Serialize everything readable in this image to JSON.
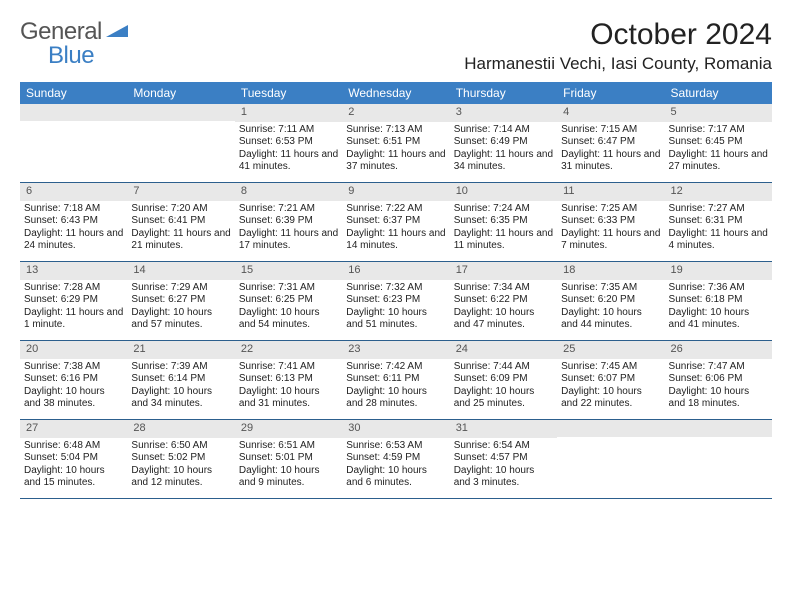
{
  "logo": {
    "text1": "General",
    "text2": "Blue"
  },
  "title": "October 2024",
  "location": "Harmanestii Vechi, Iasi County, Romania",
  "colors": {
    "header_bg": "#3b7fc4",
    "header_text": "#ffffff",
    "daynum_bg": "#e8e8e8",
    "daynum_text": "#555555",
    "body_text": "#222222",
    "row_border": "#2c5f8d",
    "logo_gray": "#555555",
    "logo_blue": "#3b7fc4",
    "page_bg": "#ffffff"
  },
  "typography": {
    "title_fontsize": 30,
    "location_fontsize": 17,
    "weekday_fontsize": 12,
    "daynum_fontsize": 11,
    "body_fontsize": 10,
    "logo_fontsize": 24
  },
  "weekdays": [
    "Sunday",
    "Monday",
    "Tuesday",
    "Wednesday",
    "Thursday",
    "Friday",
    "Saturday"
  ],
  "weeks": [
    [
      null,
      null,
      {
        "num": "1",
        "sunrise": "Sunrise: 7:11 AM",
        "sunset": "Sunset: 6:53 PM",
        "daylight": "Daylight: 11 hours and 41 minutes."
      },
      {
        "num": "2",
        "sunrise": "Sunrise: 7:13 AM",
        "sunset": "Sunset: 6:51 PM",
        "daylight": "Daylight: 11 hours and 37 minutes."
      },
      {
        "num": "3",
        "sunrise": "Sunrise: 7:14 AM",
        "sunset": "Sunset: 6:49 PM",
        "daylight": "Daylight: 11 hours and 34 minutes."
      },
      {
        "num": "4",
        "sunrise": "Sunrise: 7:15 AM",
        "sunset": "Sunset: 6:47 PM",
        "daylight": "Daylight: 11 hours and 31 minutes."
      },
      {
        "num": "5",
        "sunrise": "Sunrise: 7:17 AM",
        "sunset": "Sunset: 6:45 PM",
        "daylight": "Daylight: 11 hours and 27 minutes."
      }
    ],
    [
      {
        "num": "6",
        "sunrise": "Sunrise: 7:18 AM",
        "sunset": "Sunset: 6:43 PM",
        "daylight": "Daylight: 11 hours and 24 minutes."
      },
      {
        "num": "7",
        "sunrise": "Sunrise: 7:20 AM",
        "sunset": "Sunset: 6:41 PM",
        "daylight": "Daylight: 11 hours and 21 minutes."
      },
      {
        "num": "8",
        "sunrise": "Sunrise: 7:21 AM",
        "sunset": "Sunset: 6:39 PM",
        "daylight": "Daylight: 11 hours and 17 minutes."
      },
      {
        "num": "9",
        "sunrise": "Sunrise: 7:22 AM",
        "sunset": "Sunset: 6:37 PM",
        "daylight": "Daylight: 11 hours and 14 minutes."
      },
      {
        "num": "10",
        "sunrise": "Sunrise: 7:24 AM",
        "sunset": "Sunset: 6:35 PM",
        "daylight": "Daylight: 11 hours and 11 minutes."
      },
      {
        "num": "11",
        "sunrise": "Sunrise: 7:25 AM",
        "sunset": "Sunset: 6:33 PM",
        "daylight": "Daylight: 11 hours and 7 minutes."
      },
      {
        "num": "12",
        "sunrise": "Sunrise: 7:27 AM",
        "sunset": "Sunset: 6:31 PM",
        "daylight": "Daylight: 11 hours and 4 minutes."
      }
    ],
    [
      {
        "num": "13",
        "sunrise": "Sunrise: 7:28 AM",
        "sunset": "Sunset: 6:29 PM",
        "daylight": "Daylight: 11 hours and 1 minute."
      },
      {
        "num": "14",
        "sunrise": "Sunrise: 7:29 AM",
        "sunset": "Sunset: 6:27 PM",
        "daylight": "Daylight: 10 hours and 57 minutes."
      },
      {
        "num": "15",
        "sunrise": "Sunrise: 7:31 AM",
        "sunset": "Sunset: 6:25 PM",
        "daylight": "Daylight: 10 hours and 54 minutes."
      },
      {
        "num": "16",
        "sunrise": "Sunrise: 7:32 AM",
        "sunset": "Sunset: 6:23 PM",
        "daylight": "Daylight: 10 hours and 51 minutes."
      },
      {
        "num": "17",
        "sunrise": "Sunrise: 7:34 AM",
        "sunset": "Sunset: 6:22 PM",
        "daylight": "Daylight: 10 hours and 47 minutes."
      },
      {
        "num": "18",
        "sunrise": "Sunrise: 7:35 AM",
        "sunset": "Sunset: 6:20 PM",
        "daylight": "Daylight: 10 hours and 44 minutes."
      },
      {
        "num": "19",
        "sunrise": "Sunrise: 7:36 AM",
        "sunset": "Sunset: 6:18 PM",
        "daylight": "Daylight: 10 hours and 41 minutes."
      }
    ],
    [
      {
        "num": "20",
        "sunrise": "Sunrise: 7:38 AM",
        "sunset": "Sunset: 6:16 PM",
        "daylight": "Daylight: 10 hours and 38 minutes."
      },
      {
        "num": "21",
        "sunrise": "Sunrise: 7:39 AM",
        "sunset": "Sunset: 6:14 PM",
        "daylight": "Daylight: 10 hours and 34 minutes."
      },
      {
        "num": "22",
        "sunrise": "Sunrise: 7:41 AM",
        "sunset": "Sunset: 6:13 PM",
        "daylight": "Daylight: 10 hours and 31 minutes."
      },
      {
        "num": "23",
        "sunrise": "Sunrise: 7:42 AM",
        "sunset": "Sunset: 6:11 PM",
        "daylight": "Daylight: 10 hours and 28 minutes."
      },
      {
        "num": "24",
        "sunrise": "Sunrise: 7:44 AM",
        "sunset": "Sunset: 6:09 PM",
        "daylight": "Daylight: 10 hours and 25 minutes."
      },
      {
        "num": "25",
        "sunrise": "Sunrise: 7:45 AM",
        "sunset": "Sunset: 6:07 PM",
        "daylight": "Daylight: 10 hours and 22 minutes."
      },
      {
        "num": "26",
        "sunrise": "Sunrise: 7:47 AM",
        "sunset": "Sunset: 6:06 PM",
        "daylight": "Daylight: 10 hours and 18 minutes."
      }
    ],
    [
      {
        "num": "27",
        "sunrise": "Sunrise: 6:48 AM",
        "sunset": "Sunset: 5:04 PM",
        "daylight": "Daylight: 10 hours and 15 minutes."
      },
      {
        "num": "28",
        "sunrise": "Sunrise: 6:50 AM",
        "sunset": "Sunset: 5:02 PM",
        "daylight": "Daylight: 10 hours and 12 minutes."
      },
      {
        "num": "29",
        "sunrise": "Sunrise: 6:51 AM",
        "sunset": "Sunset: 5:01 PM",
        "daylight": "Daylight: 10 hours and 9 minutes."
      },
      {
        "num": "30",
        "sunrise": "Sunrise: 6:53 AM",
        "sunset": "Sunset: 4:59 PM",
        "daylight": "Daylight: 10 hours and 6 minutes."
      },
      {
        "num": "31",
        "sunrise": "Sunrise: 6:54 AM",
        "sunset": "Sunset: 4:57 PM",
        "daylight": "Daylight: 10 hours and 3 minutes."
      },
      null,
      null
    ]
  ]
}
